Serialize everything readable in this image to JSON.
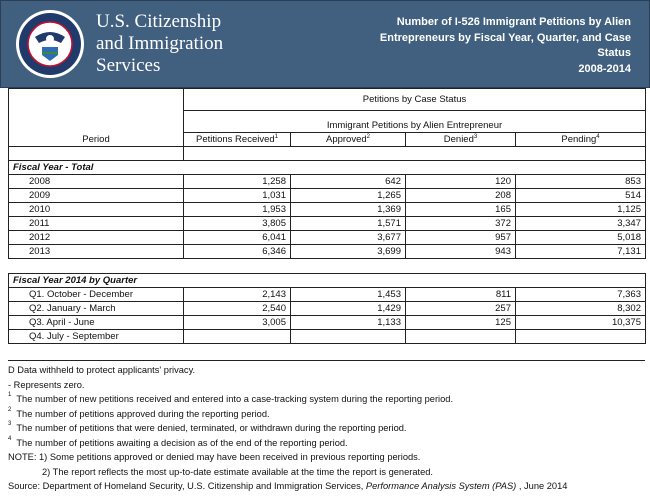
{
  "header": {
    "agency_lines": [
      "U.S. Citizenship",
      "and Immigration",
      "Services"
    ],
    "seal_text": "U.S. Department of Homeland Security",
    "title_lines": [
      "Number of I-526 Immigrant Petitions by Alien",
      "Entrepreneurs by Fiscal Year, Quarter, and Case",
      "Status",
      "2008-2014"
    ]
  },
  "table": {
    "group_header": "Petitions by Case Status",
    "sub_header": "Immigrant Petitions by Alien Entrepreneur",
    "period_header": "Period",
    "columns": [
      {
        "label": "Petitions Received",
        "sup": "1"
      },
      {
        "label": "Approved",
        "sup": "2"
      },
      {
        "label": "Denied",
        "sup": "3"
      },
      {
        "label": "Pending",
        "sup": "4"
      }
    ],
    "section1": "Fiscal Year - Total",
    "years": [
      [
        "2008",
        "1,258",
        "642",
        "120",
        "853"
      ],
      [
        "2009",
        "1,031",
        "1,265",
        "208",
        "514"
      ],
      [
        "2010",
        "1,953",
        "1,369",
        "165",
        "1,125"
      ],
      [
        "2011",
        "3,805",
        "1,571",
        "372",
        "3,347"
      ],
      [
        "2012",
        "6,041",
        "3,677",
        "957",
        "5,018"
      ],
      [
        "2013",
        "6,346",
        "3,699",
        "943",
        "7,131"
      ]
    ],
    "section2": "Fiscal Year 2014 by Quarter",
    "quarters": [
      [
        "Q1. October - December",
        "2,143",
        "1,453",
        "811",
        "7,363"
      ],
      [
        "Q2. January - March",
        "2,540",
        "1,429",
        "257",
        "8,302"
      ],
      [
        "Q3. April - June",
        "3,005",
        "1,133",
        "125",
        "10,375"
      ],
      [
        "Q4. July - September",
        "",
        "",
        "",
        ""
      ]
    ]
  },
  "notes": {
    "d": "D  Data withheld to protect applicants' privacy.",
    "zero": "- Represents zero.",
    "fn": [
      [
        "1",
        "The number of new petitions received and entered into a case-tracking system during the reporting period."
      ],
      [
        "2",
        "The number of petitions approved during the reporting period."
      ],
      [
        "3",
        "The number of petitions that were denied, terminated, or withdrawn during the reporting period."
      ],
      [
        "4",
        "The number of petitions awaiting a decision as of the end of the reporting period."
      ]
    ],
    "note1": "NOTE:  1) Some petitions approved or denied may have been received in previous reporting periods.",
    "note2": "2) The report reflects the most up-to-date estimate available at the time the report is generated.",
    "source_pre": "Source:  Department of Homeland Security, U.S. Citizenship and Immigration Services, ",
    "source_italic": "Performance Analysis System (PAS)",
    "source_post": " , June 2014"
  }
}
